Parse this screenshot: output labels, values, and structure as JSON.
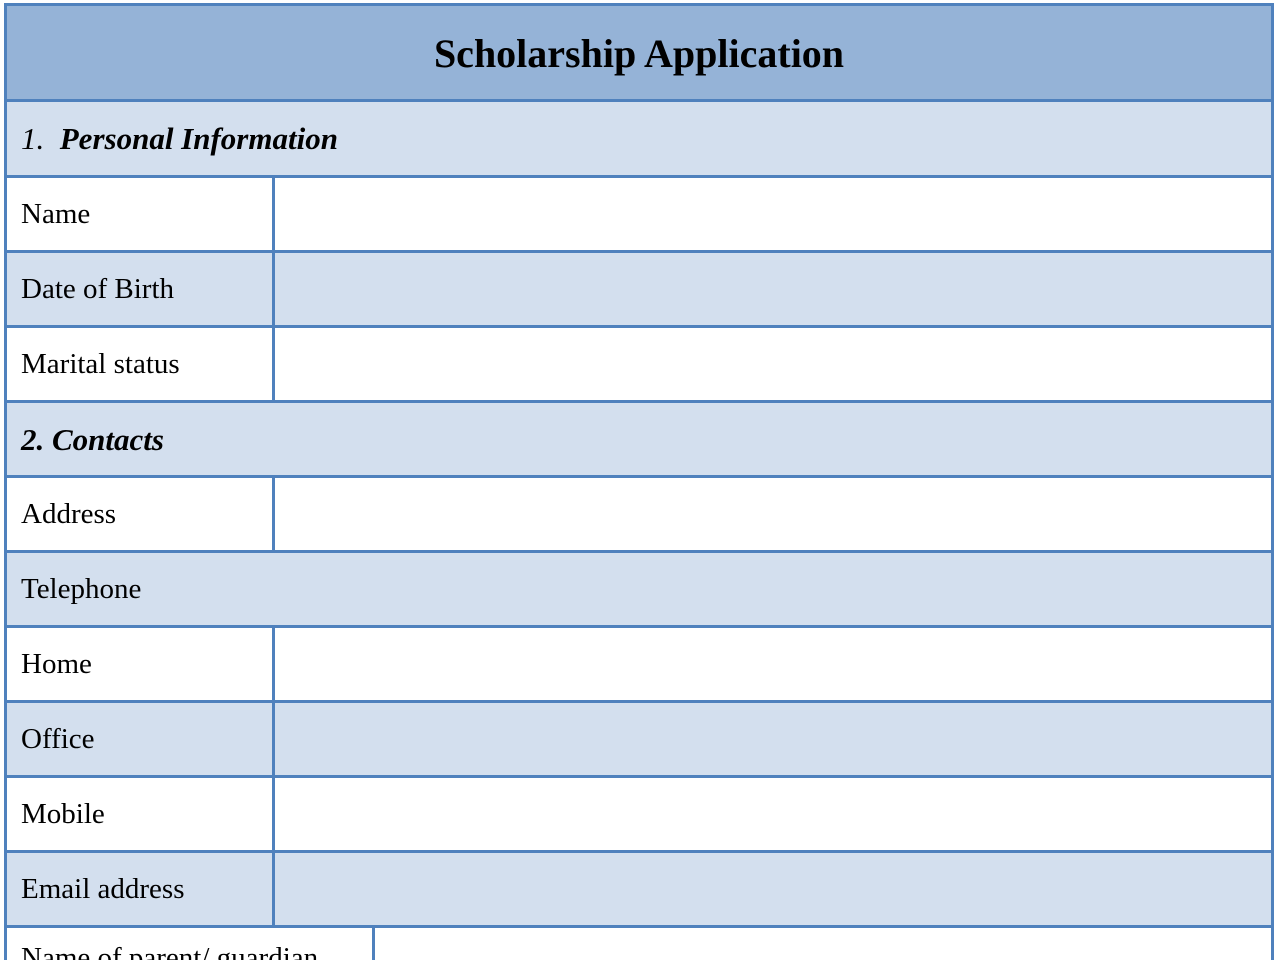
{
  "title": "Scholarship Application",
  "sections": [
    {
      "number": "1.",
      "label": "Personal Information"
    },
    {
      "number": "2.",
      "label": "Contacts"
    }
  ],
  "fields": {
    "name": "Name",
    "dob": "Date of Birth",
    "marital": "Marital status",
    "address": "Address",
    "telephone": "Telephone",
    "home": "Home",
    "office": "Office",
    "mobile": "Mobile",
    "email": "Email address",
    "parent": "Name of parent/ guardian"
  },
  "colors": {
    "header": "#95b3d7",
    "border": "#4f81bd",
    "alt_row": "#d3dfee"
  }
}
